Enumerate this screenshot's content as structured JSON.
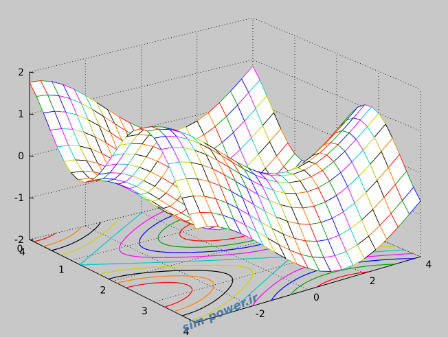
{
  "chart_data": {
    "type": "mesh+contour",
    "title": "",
    "xlabel": "",
    "ylabel": "",
    "zlabel": "",
    "xlim": [
      -4,
      4
    ],
    "ylim": [
      0,
      4
    ],
    "zlim": [
      -2,
      2
    ],
    "xticks": [
      "-2",
      "0",
      "2",
      "4"
    ],
    "yticks": [
      "0",
      "1",
      "2",
      "3",
      "4"
    ],
    "zticks": [
      "-2",
      "-1",
      "0",
      "1",
      "2"
    ],
    "corner_label": "4",
    "grid": true,
    "surface": {
      "x_range": [
        -4,
        4
      ],
      "y_range": [
        0,
        4
      ],
      "x_samples": 25,
      "y_samples": 21,
      "description_formula": "z = sin(x) + cos(1.2*y)"
    },
    "contour_levels": [
      -1.6,
      -1.2,
      -0.8,
      -0.4,
      0,
      0.4,
      0.8,
      1.2,
      1.6
    ],
    "palette": [
      "#ff0000",
      "#00a000",
      "#0000ff",
      "#ff00ff",
      "#00c8c8",
      "#d0d000",
      "#000000",
      "#ff8000"
    ]
  },
  "watermark": "sim-power.ir"
}
